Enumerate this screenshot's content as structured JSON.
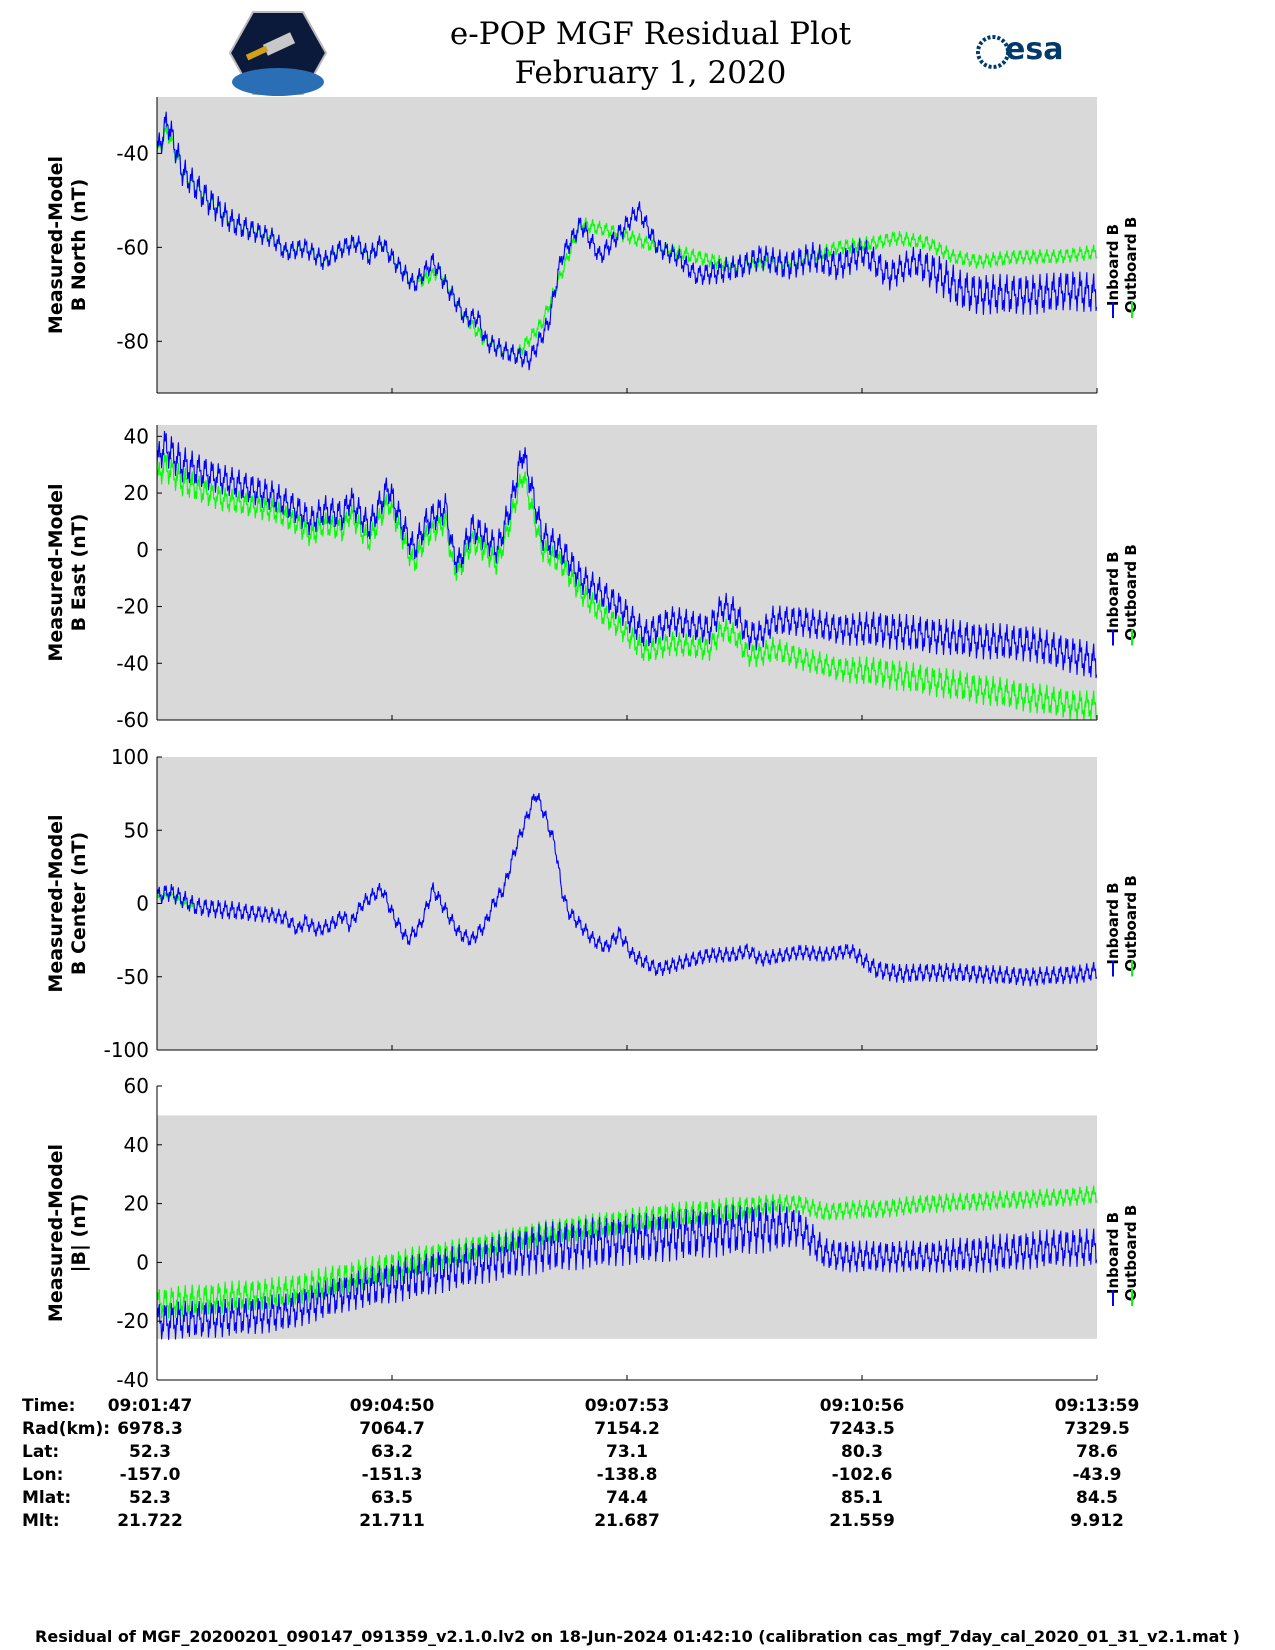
{
  "title": "e-POP MGF Residual Plot",
  "subtitle": "February 1, 2020",
  "logos": {
    "left": "cassiope-mission-logo",
    "right_text": "esa"
  },
  "footer": "Residual of MGF_20200201_090147_091359_v2.1.0.lv2 on 18-Jun-2024 01:42:10 (calibration cas_mgf_7day_cal_2020_01_31_v2.1.mat )",
  "colors": {
    "inboard": "#0000ff",
    "outboard": "#00ff00",
    "panel_bg": "#d9d9d9"
  },
  "orbit_table": {
    "labels": [
      "Time:",
      "Rad(km):",
      "Lat:",
      "Lon:",
      "Mlat:",
      "Mlt:"
    ],
    "columns": [
      [
        "09:01:47",
        "6978.3",
        "52.3",
        "-157.0",
        "52.3",
        "21.722"
      ],
      [
        "09:04:50",
        "7064.7",
        "63.2",
        "-151.3",
        "63.5",
        "21.711"
      ],
      [
        "09:07:53",
        "7154.2",
        "73.1",
        "-138.8",
        "74.4",
        "21.687"
      ],
      [
        "09:10:56",
        "7243.5",
        "80.3",
        "-102.6",
        "85.1",
        "21.559"
      ],
      [
        "09:13:59",
        "7329.5",
        "78.6",
        "-43.9",
        "84.5",
        "9.912"
      ]
    ]
  },
  "chart_data": [
    {
      "type": "line",
      "ylabel": [
        "Measured-Model",
        "B North (nT)"
      ],
      "ylim": [
        -91,
        -28
      ],
      "yticks": [
        -80,
        -60,
        -40
      ],
      "x_range_s": [
        0,
        732
      ],
      "legend": [
        "Inboard B",
        "Outboard B"
      ],
      "series": [
        {
          "name": "Inboard B",
          "x": [
            0,
            8,
            20,
            40,
            60,
            90,
            100,
            115,
            130,
            145,
            155,
            165,
            175,
            185,
            200,
            215,
            225,
            240,
            250,
            256,
            270,
            280,
            290,
            305,
            315,
            330,
            345,
            360,
            375,
            390,
            405,
            420,
            440,
            455,
            470,
            490,
            510,
            530,
            550,
            570,
            590,
            610,
            625,
            640,
            655,
            670,
            690,
            710,
            732
          ],
          "y": [
            -40,
            -33,
            -44,
            -50,
            -55,
            -58,
            -61,
            -60,
            -63,
            -60,
            -59,
            -62,
            -59,
            -63,
            -68,
            -63,
            -68,
            -75,
            -75,
            -80,
            -82,
            -83,
            -84,
            -76,
            -62,
            -55,
            -62,
            -57,
            -52,
            -60,
            -62,
            -66,
            -65,
            -64,
            -62,
            -64,
            -62,
            -64,
            -61,
            -66,
            -63,
            -66,
            -69,
            -70,
            -70,
            -70,
            -70,
            -69,
            -70
          ],
          "amp": [
            3,
            3,
            3,
            3,
            2.5,
            2,
            2,
            2,
            2,
            2,
            2,
            2,
            2,
            2,
            2,
            2,
            2,
            2,
            2,
            2,
            2,
            2,
            2,
            2,
            2,
            2,
            2,
            2,
            2,
            2,
            2,
            2,
            2.5,
            2.5,
            2.5,
            3,
            3,
            3,
            3,
            3,
            3,
            4,
            4,
            4,
            4,
            4,
            4,
            4,
            4
          ]
        },
        {
          "name": "Outboard B",
          "x": [
            0,
            8,
            20,
            40,
            60,
            90,
            100,
            115,
            130,
            145,
            155,
            165,
            175,
            185,
            200,
            220,
            240,
            256,
            280,
            300,
            330,
            360,
            390,
            420,
            450,
            500,
            530,
            560,
            575,
            600,
            620,
            640,
            670,
            700,
            732
          ],
          "y": [
            -40,
            -35,
            -44,
            -50,
            -55,
            -58,
            -61,
            -60,
            -63,
            -60,
            -59,
            -62,
            -59,
            -63,
            -68,
            -65,
            -75,
            -80,
            -83,
            -76,
            -55,
            -57,
            -60,
            -62,
            -64,
            -63,
            -60,
            -59,
            -58,
            -59,
            -62,
            -63,
            -62,
            -62,
            -61
          ],
          "amp": [
            2,
            2,
            2,
            2,
            1.5,
            1.5,
            1.5,
            1.5,
            1.5,
            1.5,
            1.5,
            1.5,
            1.5,
            1.5,
            1.5,
            1.5,
            1.5,
            1.5,
            1.5,
            1.5,
            1.5,
            1.5,
            1.5,
            1.5,
            1.5,
            1.5,
            1.5,
            1.5,
            1.5,
            1.5,
            1.5,
            1.5,
            1.5,
            1.5,
            1.5
          ]
        }
      ]
    },
    {
      "type": "line",
      "ylabel": [
        "Measured-Model",
        "B East (nT)"
      ],
      "ylim": [
        -60,
        44
      ],
      "yticks": [
        -60,
        -40,
        -20,
        0,
        20,
        40
      ],
      "x_range_s": [
        0,
        732
      ],
      "legend": [
        "Inboard B",
        "Outboard B"
      ],
      "series": [
        {
          "name": "Inboard B",
          "x": [
            0,
            5,
            20,
            50,
            90,
            110,
            120,
            130,
            145,
            150,
            165,
            180,
            190,
            195,
            200,
            210,
            225,
            230,
            235,
            245,
            255,
            265,
            275,
            285,
            300,
            315,
            330,
            345,
            360,
            380,
            400,
            430,
            440,
            450,
            460,
            470,
            480,
            500,
            530,
            560,
            600,
            640,
            680,
            720,
            732
          ],
          "y": [
            30,
            37,
            30,
            25,
            19,
            14,
            10,
            14,
            12,
            18,
            8,
            22,
            10,
            5,
            0,
            10,
            15,
            0,
            -5,
            8,
            5,
            0,
            15,
            35,
            5,
            0,
            -10,
            -15,
            -20,
            -30,
            -25,
            -28,
            -20,
            -22,
            -30,
            -30,
            -25,
            -25,
            -28,
            -28,
            -30,
            -32,
            -33,
            -38,
            -40
          ],
          "amp": [
            6,
            6,
            6,
            5,
            5,
            5,
            5,
            5,
            5,
            5,
            5,
            5,
            5,
            5,
            5,
            5,
            5,
            5,
            5,
            5,
            5,
            5,
            5,
            5,
            5,
            5,
            5,
            5,
            5,
            5,
            5,
            5,
            5,
            5,
            5,
            5,
            5,
            5,
            5,
            6,
            6,
            6,
            6,
            6,
            6
          ]
        },
        {
          "name": "Outboard B",
          "x": [
            0,
            5,
            20,
            50,
            90,
            110,
            120,
            130,
            145,
            150,
            165,
            180,
            190,
            195,
            200,
            210,
            225,
            230,
            235,
            245,
            255,
            265,
            275,
            285,
            300,
            315,
            330,
            345,
            360,
            380,
            400,
            430,
            440,
            450,
            460,
            470,
            480,
            500,
            530,
            560,
            600,
            640,
            680,
            720,
            732
          ],
          "y": [
            24,
            30,
            24,
            18,
            14,
            9,
            5,
            9,
            7,
            13,
            3,
            17,
            6,
            0,
            -5,
            5,
            10,
            -5,
            -8,
            3,
            0,
            -5,
            10,
            27,
            0,
            -5,
            -15,
            -22,
            -27,
            -36,
            -33,
            -35,
            -28,
            -30,
            -37,
            -37,
            -35,
            -38,
            -42,
            -43,
            -46,
            -49,
            -52,
            -55,
            -55
          ],
          "amp": [
            5,
            5,
            5,
            4,
            4,
            4,
            4,
            4,
            4,
            4,
            4,
            4,
            4,
            4,
            4,
            4,
            4,
            4,
            4,
            4,
            4,
            4,
            4,
            4,
            4,
            4,
            4,
            4,
            4,
            4,
            4,
            4,
            4,
            4,
            4,
            4,
            4,
            4,
            4,
            5,
            5,
            5,
            5,
            5,
            5
          ]
        }
      ]
    },
    {
      "type": "line",
      "ylabel": [
        "Measured-Model",
        "B Center (nT)"
      ],
      "ylim": [
        -100,
        100
      ],
      "yticks": [
        -100,
        -50,
        0,
        50,
        100
      ],
      "x_range_s": [
        0,
        732
      ],
      "legend": [
        "Inboard B",
        "Outboard B"
      ],
      "series": [
        {
          "name": "Inboard B",
          "x": [
            0,
            10,
            30,
            60,
            90,
            100,
            110,
            115,
            125,
            135,
            145,
            150,
            160,
            175,
            185,
            195,
            200,
            205,
            215,
            225,
            235,
            245,
            255,
            262,
            270,
            280,
            295,
            300,
            310,
            315,
            320,
            330,
            340,
            350,
            360,
            370,
            390,
            410,
            430,
            450,
            460,
            470,
            490,
            500,
            520,
            540,
            560,
            580,
            600,
            620,
            640,
            680,
            720,
            732
          ],
          "y": [
            5,
            8,
            -2,
            -5,
            -8,
            -10,
            -18,
            -12,
            -18,
            -15,
            -8,
            -15,
            0,
            10,
            -10,
            -25,
            -20,
            -15,
            10,
            -5,
            -20,
            -25,
            -15,
            0,
            10,
            40,
            75,
            65,
            40,
            10,
            -5,
            -15,
            -25,
            -30,
            -20,
            -35,
            -45,
            -40,
            -35,
            -35,
            -32,
            -38,
            -35,
            -33,
            -35,
            -32,
            -45,
            -48,
            -47,
            -47,
            -48,
            -50,
            -48,
            -46
          ],
          "amp": [
            6,
            6,
            6,
            6,
            5,
            5,
            5,
            5,
            5,
            5,
            5,
            5,
            5,
            5,
            5,
            5,
            5,
            5,
            5,
            5,
            5,
            5,
            5,
            5,
            5,
            5,
            5,
            5,
            5,
            5,
            5,
            5,
            5,
            5,
            5,
            5,
            5,
            5,
            5,
            5,
            5,
            5,
            5,
            5,
            5,
            5,
            6,
            6,
            6,
            6,
            6,
            6,
            6,
            6
          ]
        },
        {
          "name": "Outboard B",
          "x": [
            0,
            10,
            20,
            30
          ],
          "y": [
            3,
            6,
            0,
            -3
          ],
          "amp": [
            3,
            3,
            3,
            3
          ]
        }
      ]
    },
    {
      "type": "line",
      "ylabel": [
        "Measured-Model",
        "|B| (nT)"
      ],
      "ylim": [
        -40,
        60
      ],
      "yticks": [
        -40,
        -20,
        0,
        20,
        40,
        60
      ],
      "data_extent": [
        -26,
        50
      ],
      "x_range_s": [
        0,
        732
      ],
      "legend": [
        "Inboard B",
        "Outboard B"
      ],
      "series": [
        {
          "name": "Inboard B",
          "x": [
            0,
            50,
            100,
            150,
            200,
            250,
            300,
            350,
            400,
            450,
            480,
            500,
            520,
            540,
            560,
            600,
            650,
            700,
            732
          ],
          "y": [
            -20,
            -19,
            -17,
            -10,
            -5,
            0,
            5,
            7,
            9,
            11,
            12,
            12,
            3,
            2,
            2,
            2,
            3,
            5,
            5
          ],
          "amp": [
            6,
            6,
            6,
            6,
            7,
            7,
            8,
            8,
            8,
            8,
            8,
            6,
            5,
            5,
            5,
            5,
            6,
            6,
            6
          ]
        },
        {
          "name": "Outboard B",
          "x": [
            0,
            50,
            100,
            150,
            200,
            250,
            300,
            350,
            400,
            450,
            480,
            500,
            520,
            540,
            560,
            600,
            650,
            700,
            732
          ],
          "y": [
            -14,
            -12,
            -10,
            -5,
            0,
            5,
            10,
            13,
            16,
            18,
            20,
            20,
            17,
            18,
            18,
            20,
            21,
            22,
            23
          ],
          "amp": [
            5,
            5,
            5,
            5,
            5,
            4,
            4,
            4,
            4,
            4,
            3,
            3,
            3,
            3,
            3,
            3,
            3,
            3,
            3
          ]
        }
      ]
    }
  ]
}
